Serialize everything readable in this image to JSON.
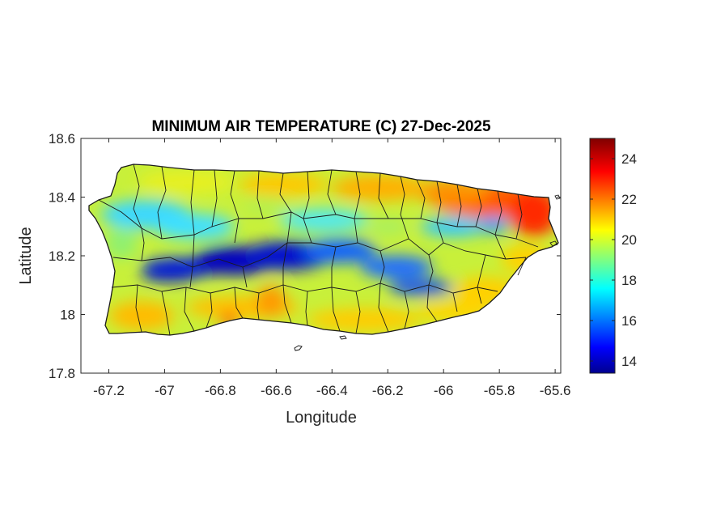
{
  "map": {
    "title": "MINIMUM AIR TEMPERATURE (C) 27-Dec-2025",
    "xlabel": "Longitude",
    "ylabel": "Latitude",
    "x_ticks": [
      "-67.2",
      "-67",
      "-66.8",
      "-66.6",
      "-66.4",
      "-66.2",
      "-66",
      "-65.8",
      "-65.6"
    ],
    "y_ticks": [
      "18.6",
      "18.4",
      "18.2",
      "18",
      "17.8"
    ],
    "xlim": [
      -67.3,
      -65.58
    ],
    "ylim": [
      17.8,
      18.6
    ],
    "colorbar": {
      "ticks": [
        "24",
        "22",
        "20",
        "18",
        "16",
        "14"
      ],
      "range": [
        13.4,
        25.0
      ],
      "colormap": "jet"
    }
  },
  "chart_data": {
    "type": "heatmap",
    "title": "MINIMUM AIR TEMPERATURE (C) 27-Dec-2025",
    "xlabel": "Longitude",
    "ylabel": "Latitude",
    "xlim": [
      -67.3,
      -65.58
    ],
    "ylim": [
      17.8,
      18.6
    ],
    "color_range": [
      13.4,
      25.0
    ],
    "colormap": "jet",
    "grid": false
  }
}
